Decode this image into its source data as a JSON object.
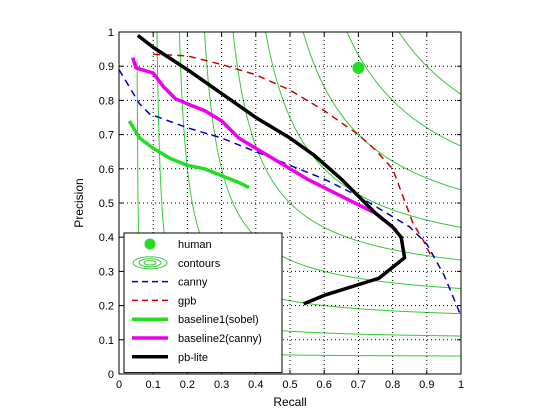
{
  "chart_data": {
    "type": "line",
    "title": "",
    "xlabel": "Recall",
    "ylabel": "Precision",
    "xlim": [
      0,
      1
    ],
    "ylim": [
      0,
      1
    ],
    "xticks": [
      "0",
      "0.1",
      "0.2",
      "0.3",
      "0.4",
      "0.5",
      "0.6",
      "0.7",
      "0.8",
      "0.9",
      "1"
    ],
    "yticks": [
      "0",
      "0.1",
      "0.2",
      "0.3",
      "0.4",
      "0.5",
      "0.6",
      "0.7",
      "0.8",
      "0.9",
      "1"
    ],
    "grid": true,
    "legend_position": "bottom-left",
    "contour_f_levels": [
      0.1,
      0.2,
      0.3,
      0.4,
      0.5,
      0.6,
      0.7,
      0.8,
      0.9
    ],
    "colors": {
      "human": "#22dd22",
      "contours": "#33cc33",
      "canny": "#0000cc",
      "gpb": "#cc0000",
      "baseline1": "#22dd22",
      "baseline2": "#ee00ee",
      "pblite": "#000000"
    },
    "series": [
      {
        "name": "human",
        "style": "marker",
        "points": [
          [
            0.7,
            0.895
          ]
        ]
      },
      {
        "name": "contours",
        "style": "contour",
        "points": []
      },
      {
        "name": "canny",
        "style": "dashed",
        "points": [
          [
            0.0,
            0.89
          ],
          [
            0.03,
            0.84
          ],
          [
            0.06,
            0.79
          ],
          [
            0.09,
            0.76
          ],
          [
            0.2,
            0.72
          ],
          [
            0.3,
            0.69
          ],
          [
            0.4,
            0.65
          ],
          [
            0.5,
            0.61
          ],
          [
            0.6,
            0.57
          ],
          [
            0.7,
            0.52
          ],
          [
            0.8,
            0.46
          ],
          [
            0.85,
            0.43
          ],
          [
            0.9,
            0.38
          ],
          [
            0.95,
            0.29
          ],
          [
            1.0,
            0.17
          ]
        ]
      },
      {
        "name": "gpb",
        "style": "dashed",
        "points": [
          [
            0.1,
            0.935
          ],
          [
            0.2,
            0.93
          ],
          [
            0.3,
            0.905
          ],
          [
            0.4,
            0.875
          ],
          [
            0.5,
            0.83
          ],
          [
            0.6,
            0.77
          ],
          [
            0.7,
            0.7
          ],
          [
            0.75,
            0.655
          ],
          [
            0.8,
            0.6
          ],
          [
            0.83,
            0.52
          ],
          [
            0.86,
            0.44
          ],
          [
            0.89,
            0.39
          ],
          [
            0.91,
            0.35
          ]
        ]
      },
      {
        "name": "baseline1(sobel)",
        "style": "solid",
        "points": [
          [
            0.03,
            0.74
          ],
          [
            0.06,
            0.69
          ],
          [
            0.1,
            0.66
          ],
          [
            0.15,
            0.63
          ],
          [
            0.2,
            0.61
          ],
          [
            0.25,
            0.6
          ],
          [
            0.3,
            0.58
          ],
          [
            0.35,
            0.56
          ],
          [
            0.38,
            0.545
          ]
        ]
      },
      {
        "name": "baseline2(canny)",
        "style": "solid",
        "points": [
          [
            0.04,
            0.925
          ],
          [
            0.05,
            0.895
          ],
          [
            0.1,
            0.88
          ],
          [
            0.13,
            0.84
          ],
          [
            0.165,
            0.805
          ],
          [
            0.2,
            0.79
          ],
          [
            0.25,
            0.77
          ],
          [
            0.3,
            0.74
          ],
          [
            0.35,
            0.69
          ],
          [
            0.45,
            0.63
          ],
          [
            0.55,
            0.57
          ],
          [
            0.65,
            0.52
          ],
          [
            0.75,
            0.47
          ],
          [
            0.8,
            0.43
          ],
          [
            0.81,
            0.42
          ]
        ]
      },
      {
        "name": "pb-lite",
        "style": "solid",
        "points": [
          [
            0.055,
            0.99
          ],
          [
            0.1,
            0.955
          ],
          [
            0.2,
            0.89
          ],
          [
            0.3,
            0.82
          ],
          [
            0.4,
            0.75
          ],
          [
            0.5,
            0.69
          ],
          [
            0.57,
            0.64
          ],
          [
            0.65,
            0.57
          ],
          [
            0.7,
            0.52
          ],
          [
            0.75,
            0.47
          ],
          [
            0.8,
            0.43
          ],
          [
            0.825,
            0.4
          ],
          [
            0.835,
            0.34
          ],
          [
            0.76,
            0.28
          ],
          [
            0.6,
            0.23
          ],
          [
            0.54,
            0.205
          ]
        ]
      }
    ]
  }
}
